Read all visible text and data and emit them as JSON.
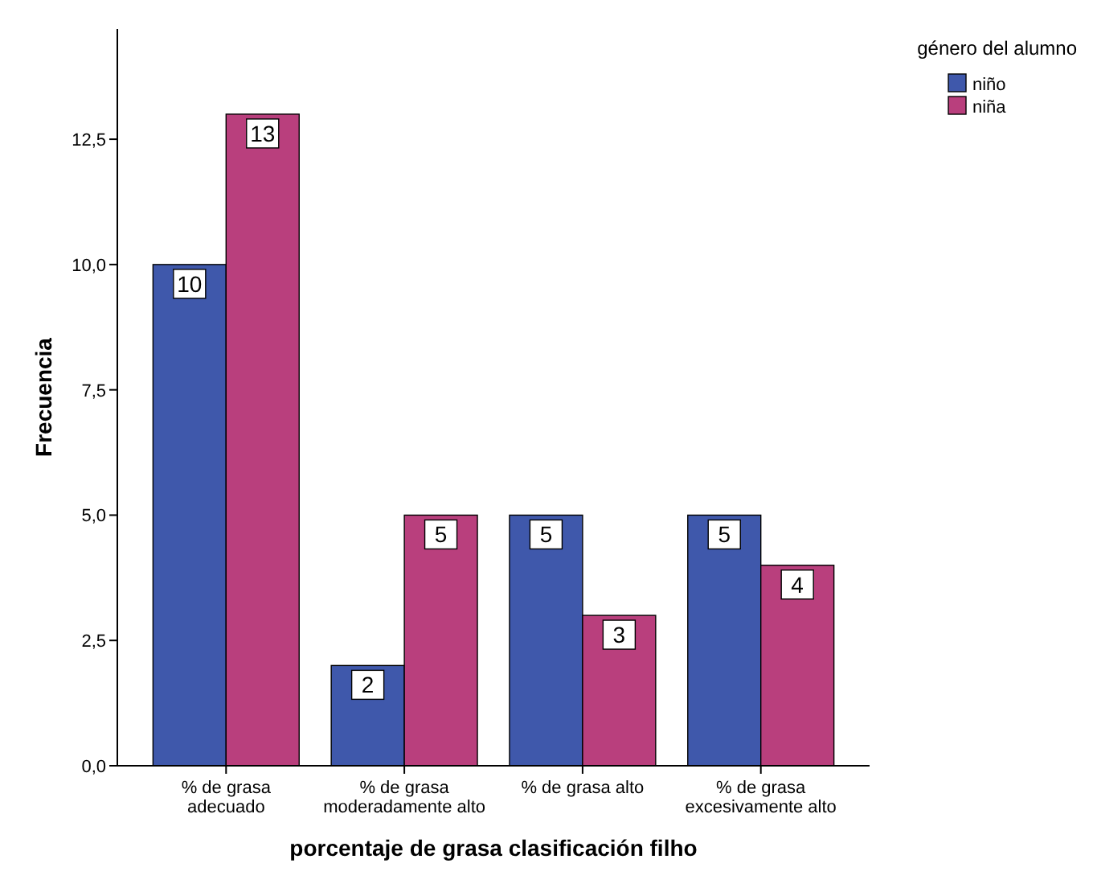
{
  "chart_data": {
    "type": "bar",
    "xlabel": "porcentaje de grasa clasificación filho",
    "ylabel": "Frecuencia",
    "legend_title": "género del alumno",
    "categories": [
      "% de grasa adecuado",
      "% de grasa moderadamente alto",
      "% de grasa alto",
      "% de grasa excesivamente alto"
    ],
    "series": [
      {
        "name": "niño",
        "color": "#3f58ab",
        "values": [
          10,
          2,
          5,
          5
        ]
      },
      {
        "name": "niña",
        "color": "#b93f7d",
        "values": [
          13,
          5,
          3,
          4
        ]
      }
    ],
    "ylim": [
      0,
      14.7
    ],
    "yticks": [
      {
        "value": 0,
        "label": "0,0"
      },
      {
        "value": 2.5,
        "label": "2,5"
      },
      {
        "value": 5,
        "label": "5,0"
      },
      {
        "value": 7.5,
        "label": "7,5"
      },
      {
        "value": 10,
        "label": "10,0"
      },
      {
        "value": 12.5,
        "label": "12,5"
      }
    ],
    "data_labels": true,
    "legend": "top right",
    "grid": false
  }
}
